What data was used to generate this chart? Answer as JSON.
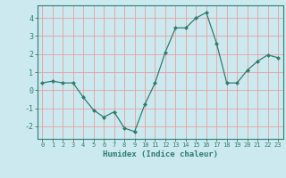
{
  "x": [
    0,
    1,
    2,
    3,
    4,
    5,
    6,
    7,
    8,
    9,
    10,
    11,
    12,
    13,
    14,
    15,
    16,
    17,
    18,
    19,
    20,
    21,
    22,
    23
  ],
  "y": [
    0.4,
    0.5,
    0.4,
    0.4,
    -0.4,
    -1.1,
    -1.5,
    -1.2,
    -2.1,
    -2.3,
    -0.8,
    0.4,
    2.1,
    3.45,
    3.45,
    4.0,
    4.3,
    2.6,
    0.4,
    0.4,
    1.1,
    1.6,
    1.95,
    1.8
  ],
  "line_color": "#2e7d6e",
  "marker": "D",
  "marker_size": 2,
  "xlabel": "Humidex (Indice chaleur)",
  "xlim": [
    -0.5,
    23.5
  ],
  "ylim": [
    -2.7,
    4.7
  ],
  "yticks": [
    -2,
    -1,
    0,
    1,
    2,
    3,
    4
  ],
  "xticks": [
    0,
    1,
    2,
    3,
    4,
    5,
    6,
    7,
    8,
    9,
    10,
    11,
    12,
    13,
    14,
    15,
    16,
    17,
    18,
    19,
    20,
    21,
    22,
    23
  ],
  "background_color": "#cce9f0",
  "grid_color": "#e8a0a0",
  "tick_color": "#2e7d6e",
  "label_color": "#2e7d6e",
  "spine_color": "#2e7d6e"
}
